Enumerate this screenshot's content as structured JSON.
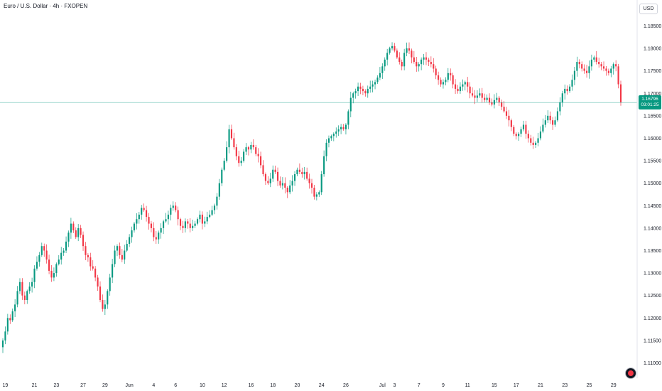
{
  "header": {
    "title": "Euro / U.S. Dollar · 4h · FXOPEN"
  },
  "price_axis": {
    "currency": "USD"
  },
  "last_price": {
    "value": "1.16796",
    "countdown": "03:01:25",
    "level": 1.16796,
    "color": "#089981"
  },
  "colors": {
    "up": "#089981",
    "down": "#f23645",
    "axis_text": "#131722",
    "price_line": "#089981"
  },
  "logo": {
    "icon": "tradingview-logo-icon"
  },
  "chart_data": {
    "type": "candlestick",
    "title": "Euro / U.S. Dollar · 4h · FXOPEN",
    "y_ticks": [
      1.185,
      1.18,
      1.175,
      1.17,
      1.165,
      1.16,
      1.155,
      1.15,
      1.145,
      1.14,
      1.135,
      1.13,
      1.125,
      1.12,
      1.115,
      1.11
    ],
    "y_tick_labels": [
      "1.18500",
      "1.18000",
      "1.17500",
      "1.17000",
      "1.16500",
      "1.16000",
      "1.15500",
      "1.15000",
      "1.14500",
      "1.14000",
      "1.13500",
      "1.13000",
      "1.12500",
      "1.12000",
      "1.11500",
      "1.11000"
    ],
    "ylim": [
      1.1085,
      1.1895
    ],
    "x_tick_labels": [
      "19",
      "21",
      "23",
      "27",
      "29",
      "Jun",
      "4",
      "6",
      "10",
      "12",
      "16",
      "18",
      "20",
      "24",
      "26",
      "Jul",
      "3",
      "7",
      "9",
      "11",
      "15",
      "17",
      "21",
      "23",
      "25",
      "29"
    ],
    "x_tick_index": [
      1,
      13,
      22,
      33,
      42,
      52,
      62,
      71,
      82,
      91,
      102,
      111,
      121,
      131,
      141,
      156,
      161,
      171,
      181,
      191,
      202,
      211,
      221,
      231,
      241,
      251
    ],
    "grid": false,
    "closes": [
      1.115,
      1.117,
      1.12,
      1.1195,
      1.1215,
      1.123,
      1.126,
      1.128,
      1.125,
      1.124,
      1.126,
      1.127,
      1.128,
      1.131,
      1.1325,
      1.134,
      1.136,
      1.135,
      1.133,
      1.1305,
      1.129,
      1.13,
      1.132,
      1.133,
      1.1345,
      1.135,
      1.137,
      1.139,
      1.141,
      1.1395,
      1.138,
      1.14,
      1.1385,
      1.136,
      1.134,
      1.1335,
      1.1315,
      1.131,
      1.129,
      1.127,
      1.124,
      1.122,
      1.123,
      1.126,
      1.129,
      1.132,
      1.135,
      1.136,
      1.134,
      1.133,
      1.135,
      1.1365,
      1.138,
      1.1395,
      1.141,
      1.142,
      1.143,
      1.1445,
      1.144,
      1.1425,
      1.141,
      1.14,
      1.138,
      1.1375,
      1.139,
      1.14,
      1.1415,
      1.142,
      1.143,
      1.1445,
      1.145,
      1.144,
      1.142,
      1.1405,
      1.14,
      1.1415,
      1.141,
      1.14,
      1.1405,
      1.141,
      1.142,
      1.143,
      1.141,
      1.1415,
      1.1425,
      1.143,
      1.144,
      1.145,
      1.147,
      1.15,
      1.153,
      1.155,
      1.158,
      1.162,
      1.16,
      1.158,
      1.156,
      1.1545,
      1.155,
      1.157,
      1.158,
      1.1575,
      1.1585,
      1.158,
      1.1565,
      1.156,
      1.154,
      1.152,
      1.1505,
      1.15,
      1.151,
      1.153,
      1.1525,
      1.1505,
      1.1495,
      1.15,
      1.149,
      1.148,
      1.1495,
      1.1505,
      1.152,
      1.153,
      1.1525,
      1.152,
      1.1525,
      1.151,
      1.15,
      1.149,
      1.147,
      1.1475,
      1.148,
      1.152,
      1.156,
      1.159,
      1.16,
      1.1605,
      1.161,
      1.1615,
      1.162,
      1.1625,
      1.162,
      1.163,
      1.166,
      1.169,
      1.17,
      1.1705,
      1.1715,
      1.171,
      1.1705,
      1.17,
      1.171,
      1.1715,
      1.172,
      1.1725,
      1.1735,
      1.1745,
      1.176,
      1.1775,
      1.179,
      1.18,
      1.1805,
      1.1795,
      1.178,
      1.177,
      1.176,
      1.179,
      1.18,
      1.1795,
      1.178,
      1.177,
      1.176,
      1.1765,
      1.1775,
      1.178,
      1.1775,
      1.177,
      1.1765,
      1.1755,
      1.174,
      1.173,
      1.172,
      1.1725,
      1.173,
      1.1745,
      1.174,
      1.172,
      1.171,
      1.1705,
      1.1715,
      1.172,
      1.1725,
      1.1715,
      1.17,
      1.1695,
      1.169,
      1.1695,
      1.17,
      1.169,
      1.1685,
      1.169,
      1.168,
      1.1675,
      1.1685,
      1.169,
      1.168,
      1.167,
      1.166,
      1.165,
      1.164,
      1.1625,
      1.161,
      1.1605,
      1.161,
      1.162,
      1.163,
      1.161,
      1.16,
      1.159,
      1.1585,
      1.159,
      1.16,
      1.1615,
      1.163,
      1.164,
      1.165,
      1.164,
      1.163,
      1.164,
      1.166,
      1.168,
      1.17,
      1.171,
      1.1705,
      1.1715,
      1.173,
      1.175,
      1.177,
      1.1765,
      1.1755,
      1.175,
      1.1745,
      1.176,
      1.1775,
      1.178,
      1.177,
      1.1765,
      1.176,
      1.1755,
      1.175,
      1.1745,
      1.1755,
      1.1765,
      1.176,
      1.172,
      1.168
    ],
    "series": [
      {
        "type": "candlestick"
      }
    ]
  }
}
